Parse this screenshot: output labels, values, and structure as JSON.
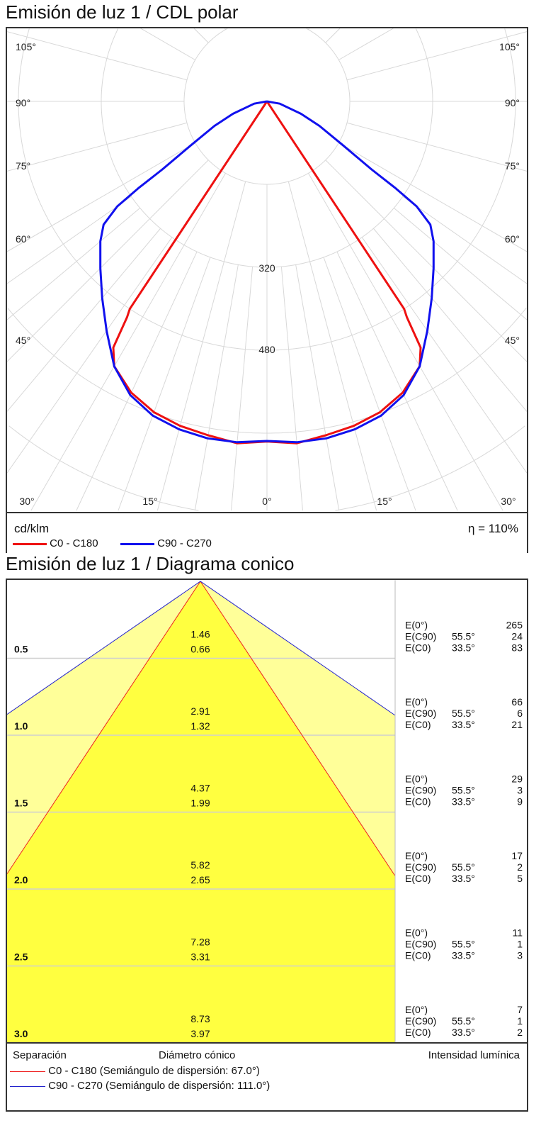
{
  "polar": {
    "title": "Emisión de luz 1 / CDL polar",
    "unit": "cd/klm",
    "efficiency": "η = 110%",
    "angle_labels_left": [
      "105°",
      "90°",
      "75°",
      "60°",
      "45°"
    ],
    "angle_labels_right": [
      "105°",
      "90°",
      "75°",
      "60°",
      "45°"
    ],
    "bottom_labels": [
      "30°",
      "15°",
      "0°",
      "15°",
      "30°"
    ],
    "ring_labels": [
      "320",
      "480"
    ]
  },
  "chart_data": [
    {
      "type": "line",
      "subtype": "polar",
      "title": "Emisión de luz 1 / CDL polar",
      "unit": "cd/klm",
      "rings": [
        160,
        320,
        480,
        640,
        800
      ],
      "grid": true,
      "legend": "bottom-left",
      "series": [
        {
          "name": "C0 - C180",
          "color": "#ee1111",
          "angles": [
            0,
            5,
            10,
            15,
            20,
            25,
            30,
            32,
            33,
            33.5,
            34
          ],
          "values": [
            656,
            662,
            654,
            648,
            638,
            620,
            590,
            560,
            496,
            480,
            0
          ]
        },
        {
          "name": "C90 - C270",
          "color": "#1111ee",
          "angles": [
            0,
            5,
            10,
            15,
            20,
            25,
            30,
            35,
            40,
            45,
            50,
            53,
            55,
            56,
            57,
            60,
            65,
            70,
            80,
            90
          ],
          "values": [
            655,
            660,
            660,
            655,
            645,
            625,
            590,
            540,
            495,
            455,
            420,
            395,
            353,
            300,
            241,
            170,
            112,
            70,
            25,
            0
          ]
        }
      ]
    },
    {
      "type": "table",
      "subtype": "conic",
      "title": "Emisión de luz 1 / Diagrama conico",
      "c0_half_angle": 33.5,
      "c90_half_angle": 55.5,
      "colors": {
        "c90_fill": "#ffff99",
        "c0_fill": "#ffff40",
        "c0_line": "#ee2222",
        "c90_line": "#2222cc"
      },
      "rows": [
        {
          "separation": "0.5",
          "d_c90": "1.46",
          "d_c0": "0.66",
          "e0": "265",
          "e_c90": "24",
          "e_c0": "83"
        },
        {
          "separation": "1.0",
          "d_c90": "2.91",
          "d_c0": "1.32",
          "e0": "66",
          "e_c90": "6",
          "e_c0": "21"
        },
        {
          "separation": "1.5",
          "d_c90": "4.37",
          "d_c0": "1.99",
          "e0": "29",
          "e_c90": "3",
          "e_c0": "9"
        },
        {
          "separation": "2.0",
          "d_c90": "5.82",
          "d_c0": "2.65",
          "e0": "17",
          "e_c90": "2",
          "e_c0": "5"
        },
        {
          "separation": "2.5",
          "d_c90": "7.28",
          "d_c0": "3.31",
          "e0": "11",
          "e_c90": "1",
          "e_c0": "3"
        },
        {
          "separation": "3.0",
          "d_c90": "8.73",
          "d_c0": "3.97",
          "e0": "7",
          "e_c90": "1",
          "e_c0": "2"
        }
      ],
      "labels": {
        "e0": "E(0°)",
        "e_c90": "E(C90)",
        "e_c0": "E(C0)",
        "a_c90": "55.5°",
        "a_c0": "33.5°"
      }
    }
  ],
  "conic": {
    "title": "Emisión de luz 1 / Diagrama conico",
    "footer": {
      "separation": "Separación",
      "diameter": "Diámetro cónico",
      "intensity": "Intensidad lumínica"
    },
    "legend": [
      "C0 - C180 (Semiángulo de dispersión: 67.0°)",
      "C90 - C270 (Semiángulo de dispersión: 111.0°)"
    ]
  }
}
